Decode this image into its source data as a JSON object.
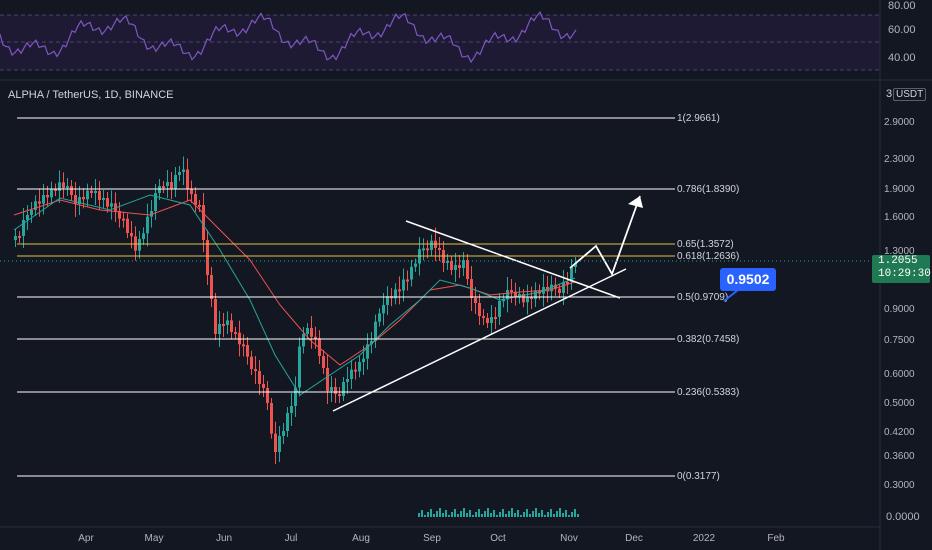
{
  "header": {
    "symbol": "ALPHA / TetherUS, 1D, BINANCE"
  },
  "rsi": {
    "levels": [
      "80.00",
      "60.00",
      "40.00"
    ],
    "color": "#7e57c2"
  },
  "price_axis": {
    "currency": "USDT",
    "top_label": "3",
    "ticks": [
      "2.9000",
      "2.3000",
      "1.9000",
      "1.6000",
      "1.3000",
      "0.9000",
      "0.7500",
      "0.6000",
      "0.5000",
      "0.4200",
      "0.3600",
      "0.3000"
    ],
    "current_price": "1.2055",
    "countdown": "10:29:30",
    "current_color": "#1f7a54"
  },
  "volume_axis": {
    "label": "0.0000"
  },
  "time_axis": {
    "labels": [
      "Apr",
      "May",
      "Jun",
      "Jul",
      "Aug",
      "Sep",
      "Oct",
      "Nov",
      "Dec",
      "2022",
      "Feb"
    ]
  },
  "fib_levels": [
    {
      "label": "1(2.9661)",
      "color": "#ffffff"
    },
    {
      "label": "0.786(1.8390)",
      "color": "#ffffff"
    },
    {
      "label": "0.65(1.3572)",
      "color": "#e0c24c"
    },
    {
      "label": "0.618(1.2636)",
      "color": "#e0c24c"
    },
    {
      "label": "0.5(0.9709)",
      "color": "#ffffff"
    },
    {
      "label": "0.382(0.7458)",
      "color": "#ffffff"
    },
    {
      "label": "0.236(0.5383)",
      "color": "#ffffff"
    },
    {
      "label": "0(0.3177)",
      "color": "#ffffff"
    }
  ],
  "annotation": {
    "target_label": "0.9502",
    "color": "#2962ff"
  },
  "colors": {
    "up": "#26a69a",
    "down": "#ef5350",
    "ma_slow": "#ef5350",
    "ma_fast": "#26a69a",
    "background": "#131722"
  }
}
